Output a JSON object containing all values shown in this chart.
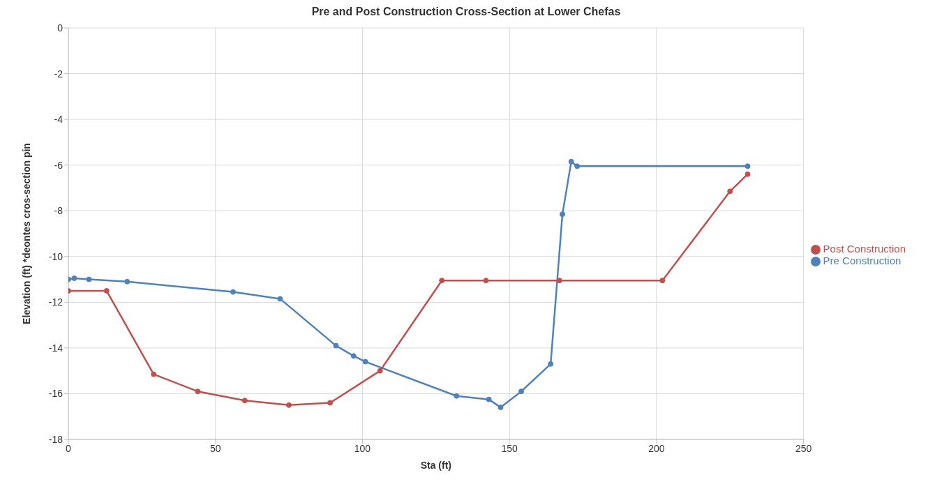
{
  "chart_data": {
    "type": "line",
    "title": "Pre and Post Construction Cross-Section at Lower Chefas",
    "xlabel": "Sta (ft)",
    "ylabel": "Elevation (ft)  *deontes cros-section pin",
    "series": [
      {
        "name": "Pre Construction",
        "color": "#4f81bd",
        "values": [
          -11.0,
          -10.95,
          -11.0,
          -11.1,
          -11.55,
          -11.85,
          -13.9,
          -14.35,
          -14.6,
          -16.1,
          -16.25,
          -16.6,
          -15.9,
          -14.7,
          -8.15,
          -5.85,
          -6.05,
          -6.05
        ],
        "x": [
          0,
          2,
          7,
          20,
          56,
          72,
          91,
          97,
          101,
          132,
          143,
          147,
          154,
          164,
          168,
          171,
          173,
          231
        ]
      },
      {
        "name": "Post Construction",
        "color": "#c0504d",
        "x": [
          0,
          13,
          29,
          44,
          60,
          75,
          89,
          106,
          127,
          142,
          167,
          202,
          225,
          231
        ],
        "values": [
          -11.5,
          -11.5,
          -15.15,
          -15.9,
          -16.3,
          -16.5,
          -16.4,
          -15.0,
          -11.05,
          -11.05,
          -11.05,
          -11.05,
          -7.15,
          -6.4
        ]
      }
    ],
    "xlim": [
      0,
      250
    ],
    "xticks": [
      0,
      50,
      100,
      150,
      200,
      250
    ],
    "ylim": [
      -18,
      0
    ],
    "yticks": [
      -18,
      -16,
      -14,
      -12,
      -10,
      -8,
      -6,
      -4,
      -2,
      0
    ],
    "grid": true,
    "legend": "right",
    "marker": "circle",
    "line_style": "solid"
  }
}
